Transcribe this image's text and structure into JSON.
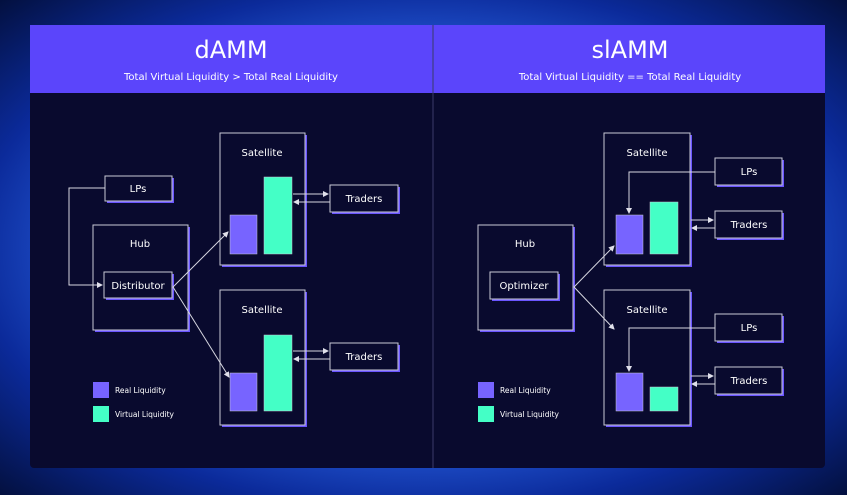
{
  "colors": {
    "header": "#5b45fb",
    "background": "#090a2e",
    "real_liquidity": "#7764ff",
    "virtual_liquidity": "#44ffc6"
  },
  "left": {
    "title": "dAMM",
    "subtitle": "Total Virtual Liquidity > Total Real Liquidity",
    "lps": "LPs",
    "hub": "Hub",
    "distributor": "Distributor",
    "satellite": "Satellite",
    "traders": "Traders"
  },
  "right": {
    "title": "slAMM",
    "subtitle": "Total Virtual Liquidity == Total Real Liquidity",
    "lps": "LPs",
    "hub": "Hub",
    "optimizer": "Optimizer",
    "satellite": "Satellite",
    "traders": "Traders"
  },
  "legend": {
    "real": "Real Liquidity",
    "virtual": "Virtual Liquidity"
  }
}
